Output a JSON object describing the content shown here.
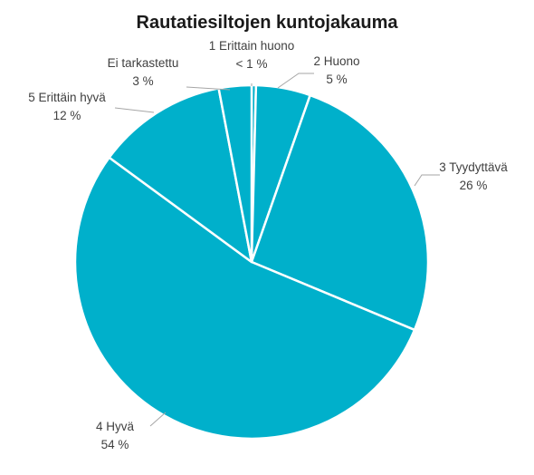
{
  "chart_data": {
    "type": "pie",
    "title": "Rautatiesiltojen kuntojakauma",
    "start_category": "1 Erittain huono",
    "direction": "clockwise",
    "slices": [
      {
        "label": "1 Erittain huono",
        "value": 0.4,
        "value_label": "< 1 %"
      },
      {
        "label": "2 Huono",
        "value": 5,
        "value_label": "5 %"
      },
      {
        "label": "3 Tyydyttävä",
        "value": 26,
        "value_label": "26 %"
      },
      {
        "label": "4 Hyvä",
        "value": 54,
        "value_label": "54 %"
      },
      {
        "label": "5 Erittäin hyvä",
        "value": 12,
        "value_label": "12 %"
      },
      {
        "label": "Ei tarkastettu",
        "value": 3,
        "value_label": "3 %"
      }
    ],
    "colors": {
      "slice_fill": "#00b0cb",
      "slice_border": "#ffffff",
      "leader_line": "#a6a6a6",
      "label_text": "#404040"
    }
  }
}
